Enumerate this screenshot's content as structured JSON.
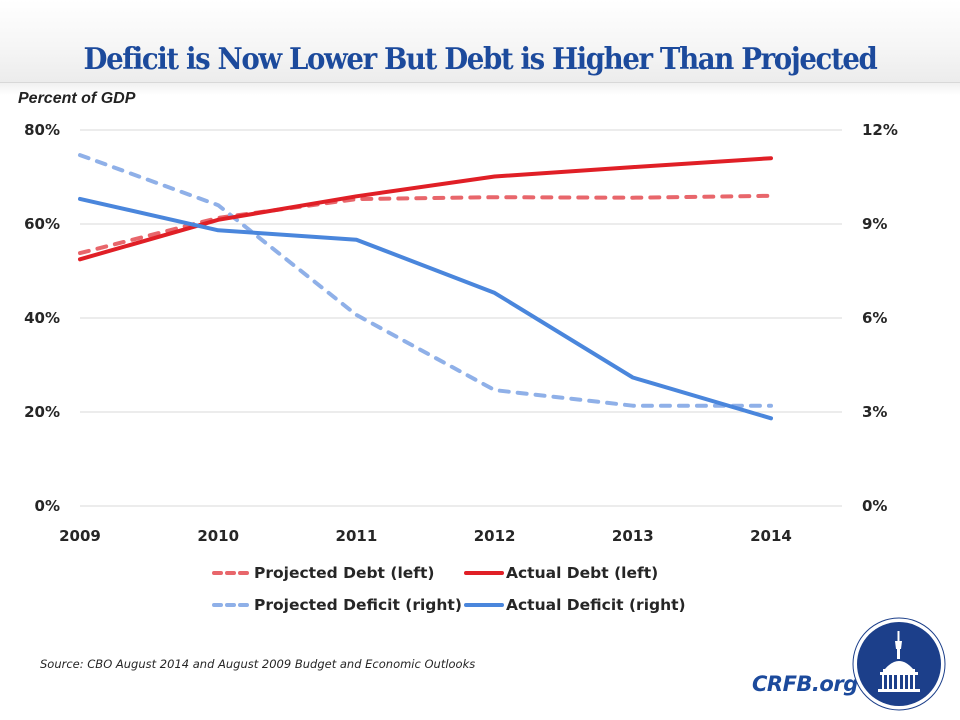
{
  "title": "Deficit is Now Lower But Debt is Higher Than Projected",
  "unit_label": "Percent of GDP",
  "source": "Source: CBO August 2014 and August 2009 Budget and Economic Outlooks",
  "brand": "CRFB.org",
  "logo_icon": "capitol-dome-icon",
  "colors": {
    "title": "#1c4a9c",
    "projected_debt": "#e8666b",
    "actual_debt": "#e01f26",
    "projected_deficit": "#8fb0e8",
    "actual_deficit": "#4a86dc",
    "grid": "#d9d9d9",
    "logo_bg": "#1c3f8a"
  },
  "chart_data": {
    "type": "line",
    "title": "Deficit is Now Lower But Debt is Higher Than Projected",
    "xlabel": "",
    "ylabel": "Percent of GDP",
    "x": [
      "2009",
      "2010",
      "2011",
      "2012",
      "2013",
      "2014"
    ],
    "y_left": {
      "range": [
        0,
        80
      ],
      "ticks": [
        "0%",
        "20%",
        "40%",
        "60%",
        "80%"
      ],
      "tick_values": [
        0,
        20,
        40,
        60,
        80
      ]
    },
    "y_right": {
      "range": [
        0,
        12
      ],
      "ticks": [
        "0%",
        "3%",
        "6%",
        "9%",
        "12%"
      ],
      "tick_values": [
        0,
        3,
        6,
        9,
        12
      ]
    },
    "grid": true,
    "legend_position": "bottom",
    "series": [
      {
        "name": "Projected Debt (left)",
        "axis": "left",
        "style": "dashed",
        "color": "#e8666b",
        "values": [
          53.8,
          61.3,
          65.3,
          65.7,
          65.6,
          66.0
        ]
      },
      {
        "name": "Actual Debt (left)",
        "axis": "left",
        "style": "solid",
        "color": "#e01f26",
        "values": [
          52.5,
          60.9,
          65.9,
          70.1,
          72.1,
          74.0
        ]
      },
      {
        "name": "Projected Deficit (right)",
        "axis": "right",
        "style": "dashed",
        "color": "#8fb0e8",
        "values": [
          11.2,
          9.6,
          6.1,
          3.7,
          3.2,
          3.2
        ]
      },
      {
        "name": "Actual Deficit (right)",
        "axis": "right",
        "style": "solid",
        "color": "#4a86dc",
        "values": [
          9.8,
          8.8,
          8.5,
          6.8,
          4.1,
          2.8
        ]
      }
    ]
  }
}
